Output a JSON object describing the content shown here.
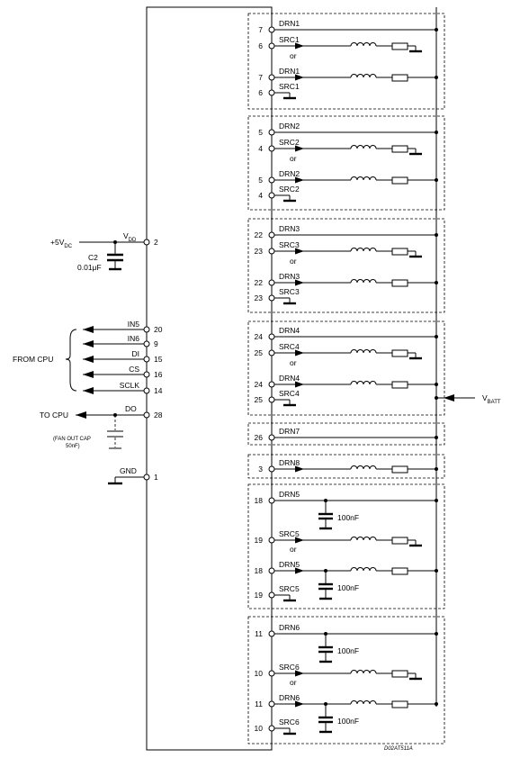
{
  "diagram_code": "D02AT511A",
  "battery": {
    "label": "V",
    "sub": "BATT"
  },
  "power": {
    "supply_label": "+5V",
    "supply_sub": "DC",
    "pin_label": "V",
    "pin_sub": "DD",
    "pin": "2",
    "cap_name": "C2",
    "cap_value": "0.01μF"
  },
  "inputs": {
    "group_label": "FROM CPU",
    "lines": [
      {
        "label": "IN5",
        "pin": "20"
      },
      {
        "label": "IN6",
        "pin": "9"
      },
      {
        "label": "DI",
        "pin": "15"
      },
      {
        "label": "CS",
        "pin": "16"
      },
      {
        "label": "SCLK",
        "pin": "14"
      }
    ]
  },
  "output": {
    "label": "DO",
    "pin": "28",
    "dest": "TO CPU",
    "note1": "(FAN OUT CAP",
    "note2": "50nF)"
  },
  "ground": {
    "label": "GND",
    "pin": "1"
  },
  "or_word": "or",
  "cap_value": "100nF",
  "channels": [
    {
      "id": "ch1",
      "variants": [
        {
          "drn_label": "DRN1",
          "drn_pin": "7",
          "src_label": "SRC1",
          "src_pin": "6"
        },
        {
          "drn_label": "DRN1",
          "drn_pin": "7",
          "src_label": "SRC1",
          "src_pin": "6"
        }
      ]
    },
    {
      "id": "ch2",
      "variants": [
        {
          "drn_label": "DRN2",
          "drn_pin": "5",
          "src_label": "SRC2",
          "src_pin": "4"
        },
        {
          "drn_label": "DRN2",
          "drn_pin": "5",
          "src_label": "SRC2",
          "src_pin": "4"
        }
      ]
    },
    {
      "id": "ch3",
      "variants": [
        {
          "drn_label": "DRN3",
          "drn_pin": "22",
          "src_label": "SRC3",
          "src_pin": "23"
        },
        {
          "drn_label": "DRN3",
          "drn_pin": "22",
          "src_label": "SRC3",
          "src_pin": "23"
        }
      ]
    },
    {
      "id": "ch4",
      "variants": [
        {
          "drn_label": "DRN4",
          "drn_pin": "24",
          "src_label": "SRC4",
          "src_pin": "25"
        },
        {
          "drn_label": "DRN4",
          "drn_pin": "24",
          "src_label": "SRC4",
          "src_pin": "25"
        }
      ]
    },
    {
      "id": "ch7",
      "drn_label": "DRN7",
      "drn_pin": "26"
    },
    {
      "id": "ch8",
      "drn_label": "DRN8",
      "drn_pin": "3"
    },
    {
      "id": "ch5",
      "variants": [
        {
          "drn_label": "DRN5",
          "drn_pin": "18",
          "src_label": "SRC5",
          "src_pin": "19"
        },
        {
          "drn_label": "DRN5",
          "drn_pin": "18",
          "src_label": "SRC5",
          "src_pin": "19"
        }
      ]
    },
    {
      "id": "ch6",
      "variants": [
        {
          "drn_label": "DRN6",
          "drn_pin": "11",
          "src_label": "SRC6",
          "src_pin": "10"
        },
        {
          "drn_label": "DRN6",
          "drn_pin": "11",
          "src_label": "SRC6",
          "src_pin": "10"
        }
      ]
    }
  ]
}
